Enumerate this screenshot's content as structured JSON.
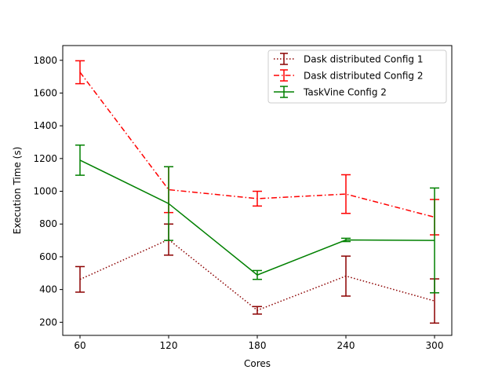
{
  "chart_data": {
    "type": "line",
    "xlabel": "Cores",
    "ylabel": "Execution Time (s)",
    "x": [
      60,
      120,
      180,
      240,
      300
    ],
    "x_ticks": [
      "60",
      "120",
      "180",
      "240",
      "300"
    ],
    "ylim": [
      120,
      1890
    ],
    "y_ticks": [
      200,
      400,
      600,
      800,
      1000,
      1200,
      1400,
      1600,
      1800
    ],
    "grid": false,
    "legend_position": "top-right",
    "series": [
      {
        "name": "Dask distributed Config 1",
        "color": "#8b0000",
        "line_style": "dotted",
        "values": [
          462,
          705,
          273,
          482,
          330
        ],
        "errors": [
          78,
          95,
          23,
          122,
          135
        ]
      },
      {
        "name": "Dask distributed Config 2",
        "color": "#ff0000",
        "line_style": "dashdot",
        "values": [
          1727,
          1010,
          955,
          983,
          842
        ],
        "errors": [
          70,
          140,
          45,
          118,
          108
        ]
      },
      {
        "name": "TaskVine Config 2",
        "color": "#008000",
        "line_style": "solid",
        "values": [
          1190,
          925,
          489,
          703,
          700
        ],
        "errors": [
          92,
          225,
          27,
          10,
          320
        ]
      }
    ]
  }
}
